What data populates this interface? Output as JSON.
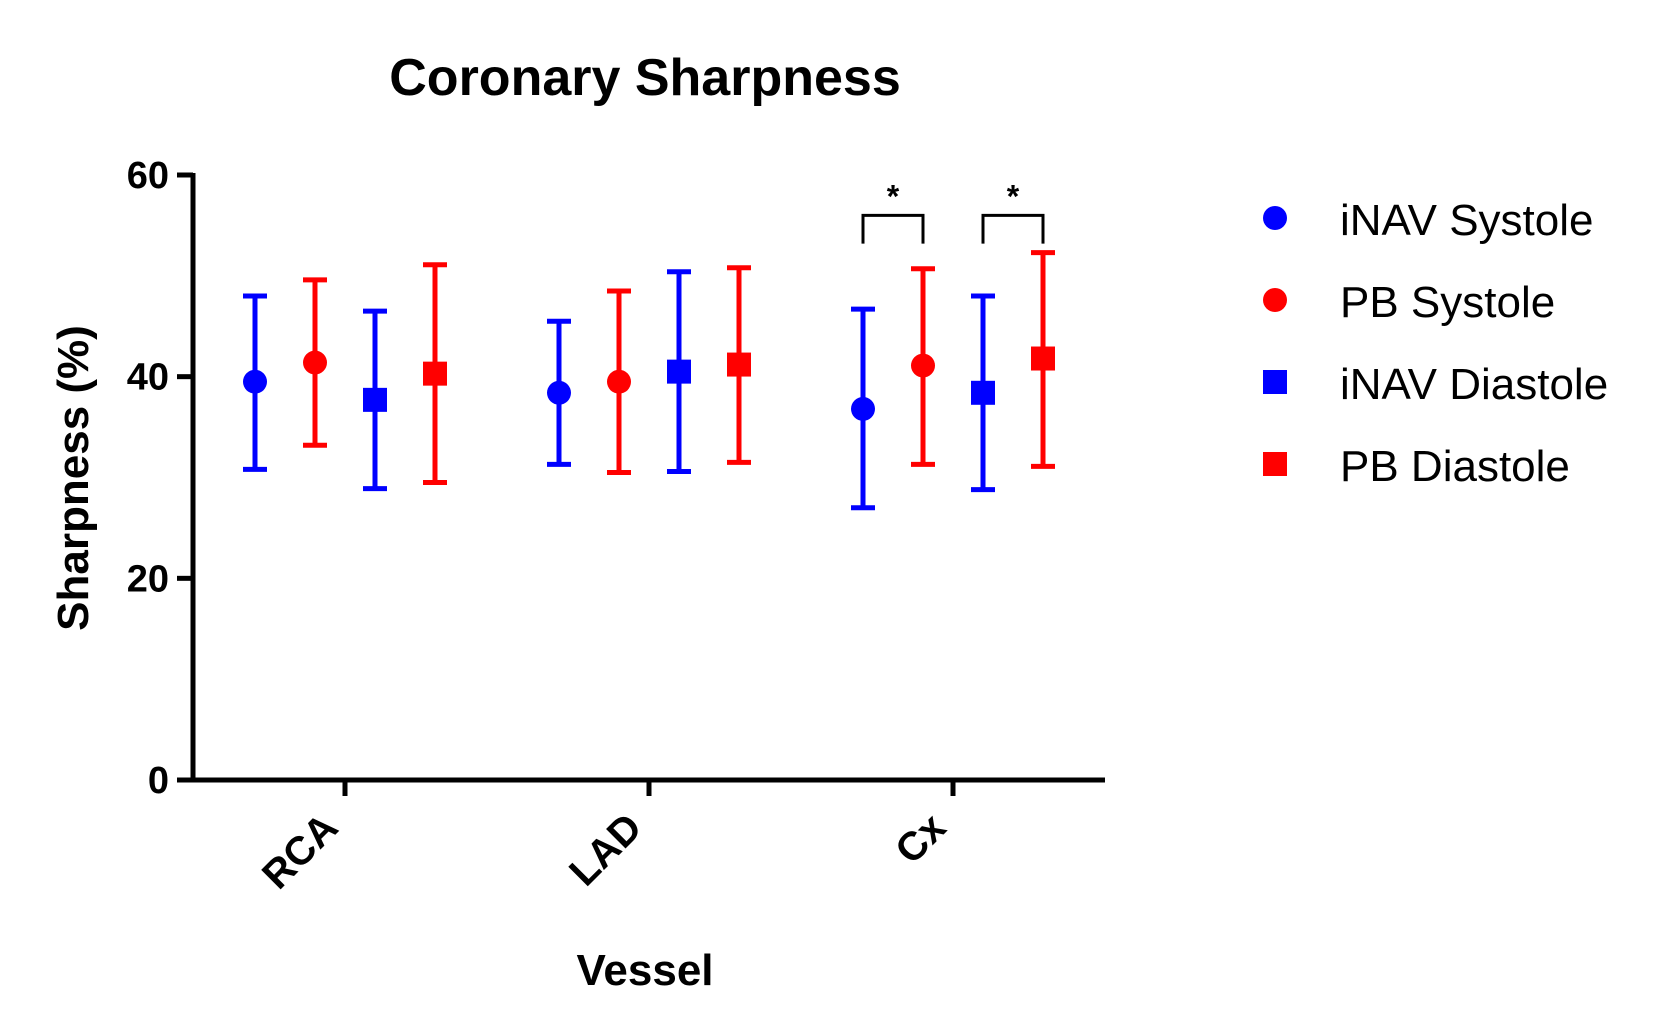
{
  "chart_data": {
    "type": "scatter",
    "title": "Coronary Sharpness",
    "xlabel": "Vessel",
    "ylabel": "Sharpness  (%)",
    "ylim": [
      0,
      60
    ],
    "yticks": [
      0,
      20,
      40,
      60
    ],
    "categories": [
      "RCA",
      "LAD",
      "Cx"
    ],
    "grid": false,
    "legend_position": "right",
    "series": [
      {
        "name": "iNAV Systole",
        "color": "#0000ff",
        "marker": "circle",
        "mean": [
          39.5,
          38.4,
          36.8
        ],
        "upper": [
          48.0,
          45.5,
          46.7
        ],
        "lower": [
          30.8,
          31.3,
          27.0
        ]
      },
      {
        "name": "PB Systole",
        "color": "#ff0000",
        "marker": "circle",
        "mean": [
          41.4,
          39.5,
          41.1
        ],
        "upper": [
          49.6,
          48.5,
          50.7
        ],
        "lower": [
          33.2,
          30.5,
          31.3
        ]
      },
      {
        "name": "iNAV Diastole",
        "color": "#0000ff",
        "marker": "square",
        "mean": [
          37.7,
          40.5,
          38.4
        ],
        "upper": [
          46.5,
          50.4,
          48.0
        ],
        "lower": [
          28.9,
          30.6,
          28.8
        ]
      },
      {
        "name": "PB Diastole",
        "color": "#ff0000",
        "marker": "square",
        "mean": [
          40.3,
          41.2,
          41.8
        ],
        "upper": [
          51.1,
          50.8,
          52.3
        ],
        "lower": [
          29.5,
          31.5,
          31.1
        ]
      }
    ],
    "annotations": [
      {
        "text": "*",
        "category": "Cx",
        "between": [
          "iNAV Systole",
          "PB Systole"
        ]
      },
      {
        "text": "*",
        "category": "Cx",
        "between": [
          "iNAV Diastole",
          "PB Diastole"
        ]
      }
    ]
  }
}
